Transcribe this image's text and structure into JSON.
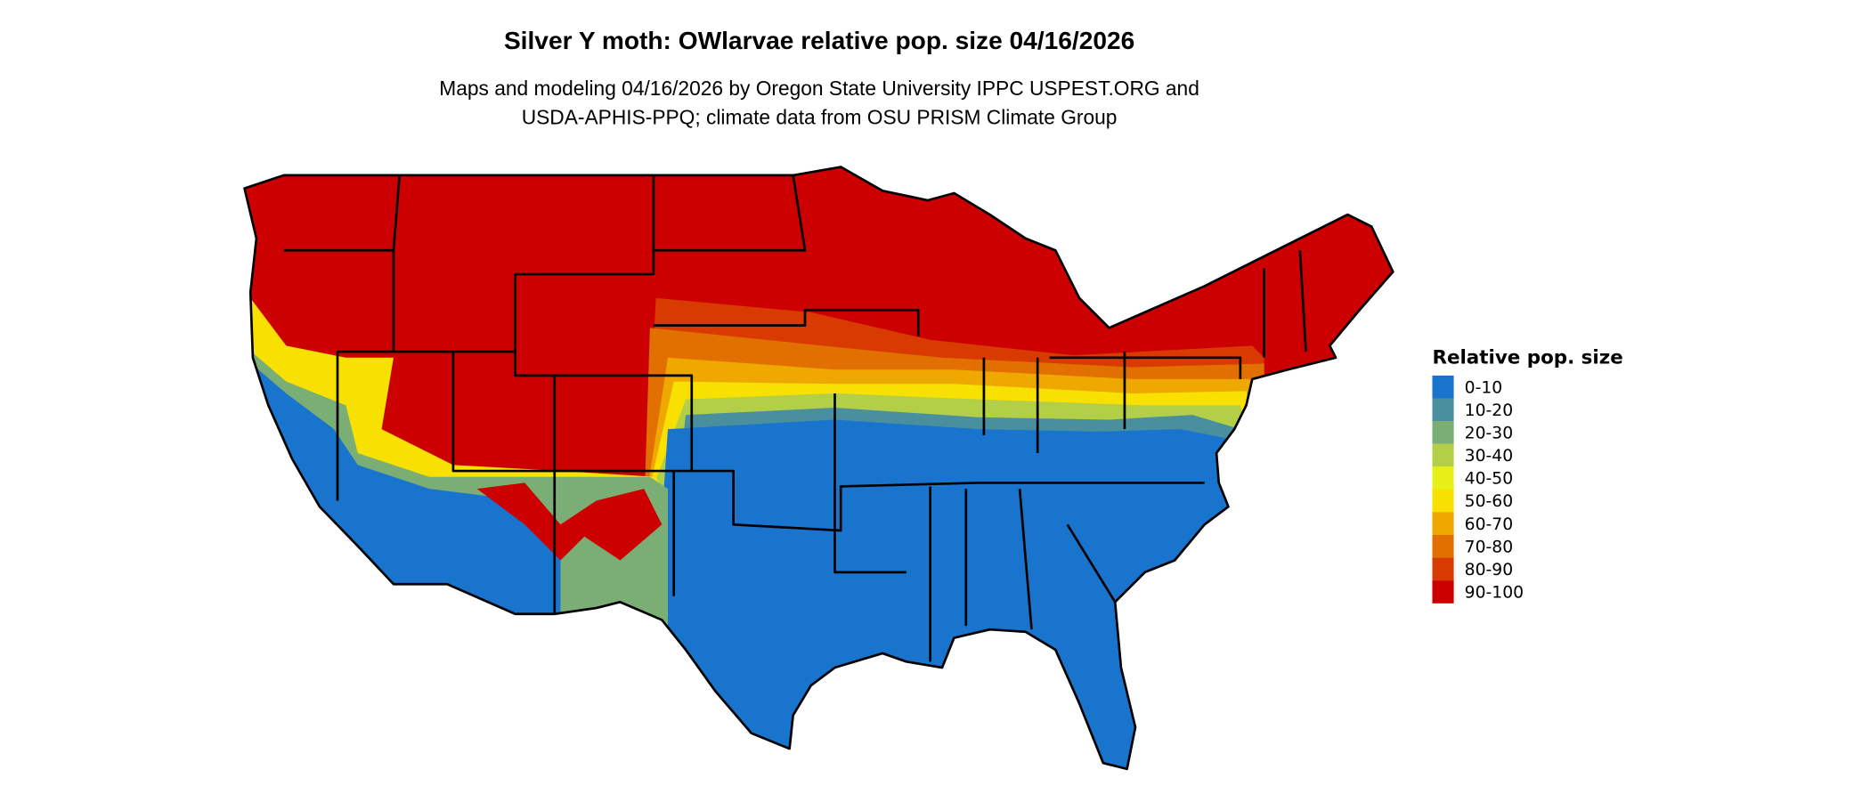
{
  "title": "Silver Y moth: OWlarvae relative pop. size 04/16/2026",
  "subtitle_line1": "Maps and modeling 04/16/2026 by Oregon State University IPPC USPEST.ORG and",
  "subtitle_line2": "USDA-APHIS-PPQ; climate data from OSU PRISM Climate Group",
  "legend": {
    "title": "Relative pop. size",
    "position": "right",
    "items": [
      {
        "label": "0-10",
        "color": "#1874cd"
      },
      {
        "label": "10-20",
        "color": "#4a8f9e"
      },
      {
        "label": "20-30",
        "color": "#7bae74"
      },
      {
        "label": "30-40",
        "color": "#b2cf47"
      },
      {
        "label": "40-50",
        "color": "#e6ef16"
      },
      {
        "label": "50-60",
        "color": "#f8e000"
      },
      {
        "label": "60-70",
        "color": "#eea800"
      },
      {
        "label": "70-80",
        "color": "#e27000"
      },
      {
        "label": "80-90",
        "color": "#d93a00"
      },
      {
        "label": "90-100",
        "color": "#cc0000"
      }
    ]
  },
  "map": {
    "region": "Contiguous United States",
    "summary_by_area": {
      "north": "90-100",
      "central_transition": "30-80",
      "south_and_southwest_lowlands": "0-10"
    }
  }
}
